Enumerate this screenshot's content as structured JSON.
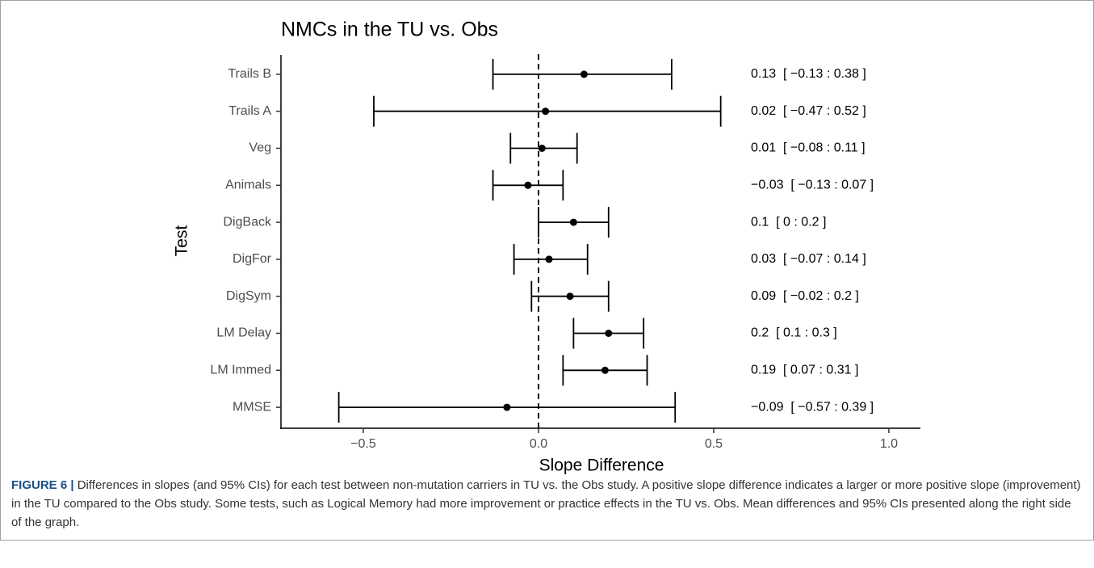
{
  "chart_data": {
    "type": "forest",
    "title": "NMCs in the TU vs. Obs",
    "xlabel": "Slope Difference",
    "ylabel": "Test",
    "categories": [
      "Trails B",
      "Trails A",
      "Veg",
      "Animals",
      "DigBack",
      "DigFor",
      "DigSym",
      "LM Delay",
      "LM Immed",
      "MMSE"
    ],
    "values": [
      0.13,
      0.02,
      0.01,
      -0.03,
      0.1,
      0.03,
      0.09,
      0.2,
      0.19,
      -0.09
    ],
    "ci_low": [
      -0.13,
      -0.47,
      -0.08,
      -0.13,
      0,
      -0.07,
      -0.02,
      0.1,
      0.07,
      -0.57
    ],
    "ci_high": [
      0.38,
      0.52,
      0.11,
      0.07,
      0.2,
      0.14,
      0.2,
      0.3,
      0.31,
      0.39
    ],
    "value_labels": [
      "0.13  [ −0.13 : 0.38 ]",
      "0.02  [ −0.47 : 0.52 ]",
      "0.01  [ −0.08 : 0.11 ]",
      "−0.03  [ −0.13 : 0.07 ]",
      "0.1  [ 0 : 0.2 ]",
      "0.03  [ −0.07 : 0.14 ]",
      "0.09  [ −0.02 : 0.2 ]",
      "0.2  [ 0.1 : 0.3 ]",
      "0.19  [ 0.07 : 0.31 ]",
      "−0.09  [ −0.57 : 0.39 ]"
    ],
    "color": "#000000",
    "reference_line": 0,
    "xlim": [
      -0.735,
      1.09
    ],
    "xticks": [
      {
        "value": -0.5,
        "label": "−0.5"
      },
      {
        "value": 0,
        "label": "0.0"
      },
      {
        "value": 0.5,
        "label": "0.5"
      },
      {
        "value": 1,
        "label": "1.0"
      }
    ]
  },
  "caption": {
    "label": "FIGURE 6 |",
    "text": "Differences in slopes (and 95% CIs) for each test between non-mutation carriers in TU vs. the Obs study. A positive slope difference indicates a larger or more positive slope (improvement) in the TU compared to the Obs study. Some tests, such as Logical Memory had more improvement or practice effects in the TU vs. Obs. Mean differences and 95% CIs presented along the right side of the graph."
  }
}
